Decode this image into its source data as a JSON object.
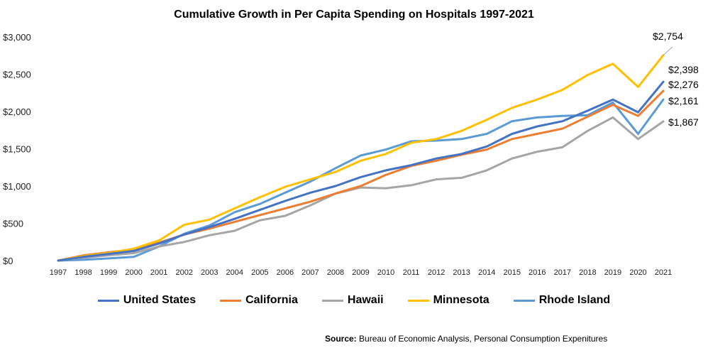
{
  "chart_data": {
    "type": "line",
    "title": "Cumulative Growth in Per Capita Spending on Hospitals 1997-2021",
    "xlabel": "",
    "ylabel": "",
    "x": [
      "1997",
      "1998",
      "1999",
      "2000",
      "2001",
      "2002",
      "2003",
      "2004",
      "2005",
      "2006",
      "2007",
      "2008",
      "2009",
      "2010",
      "2011",
      "2012",
      "2013",
      "2014",
      "2015",
      "2016",
      "2017",
      "2018",
      "2019",
      "2020",
      "2021"
    ],
    "ylim": [
      0,
      3000
    ],
    "yticks": [
      0,
      500,
      1000,
      1500,
      2000,
      2500,
      3000
    ],
    "ytick_labels": [
      "$0",
      "$500",
      "$1,000",
      "$1,500",
      "$2,000",
      "$2,500",
      "$3,000"
    ],
    "legend_position": "bottom",
    "series": [
      {
        "name": "United States",
        "color": "#4472C4",
        "values": [
          0,
          50,
          90,
          130,
          230,
          350,
          450,
          560,
          680,
          800,
          910,
          1000,
          1120,
          1210,
          1280,
          1370,
          1430,
          1530,
          1700,
          1800,
          1870,
          2010,
          2160,
          1990,
          2398
        ]
      },
      {
        "name": "California",
        "color": "#ED7D31",
        "values": [
          0,
          70,
          110,
          150,
          240,
          350,
          430,
          520,
          610,
          700,
          790,
          900,
          1000,
          1150,
          1270,
          1340,
          1420,
          1490,
          1630,
          1700,
          1770,
          1930,
          2090,
          1940,
          2276
        ]
      },
      {
        "name": "Hawaii",
        "color": "#A5A5A5",
        "values": [
          0,
          40,
          70,
          100,
          190,
          250,
          340,
          400,
          540,
          600,
          740,
          900,
          980,
          970,
          1010,
          1090,
          1110,
          1210,
          1370,
          1460,
          1520,
          1740,
          1920,
          1630,
          1867
        ]
      },
      {
        "name": "Minnesota",
        "color": "#FFC000",
        "values": [
          0,
          60,
          100,
          160,
          270,
          480,
          550,
          700,
          850,
          990,
          1090,
          1190,
          1340,
          1430,
          1580,
          1630,
          1740,
          1890,
          2050,
          2160,
          2290,
          2490,
          2640,
          2330,
          2754
        ]
      },
      {
        "name": "Rhode Island",
        "color": "#5B9BD5",
        "values": [
          0,
          10,
          30,
          50,
          190,
          360,
          470,
          650,
          760,
          910,
          1060,
          1240,
          1410,
          1490,
          1600,
          1610,
          1630,
          1700,
          1870,
          1920,
          1940,
          1950,
          2120,
          1700,
          2161
        ]
      }
    ],
    "end_labels": [
      "$2,754",
      "$2,398",
      "$2,276",
      "$2,161",
      "$1,867"
    ]
  },
  "source": {
    "prefix": "Source:",
    "text": "Bureau of Economic Analysis, Personal Consumption Expenitures"
  }
}
